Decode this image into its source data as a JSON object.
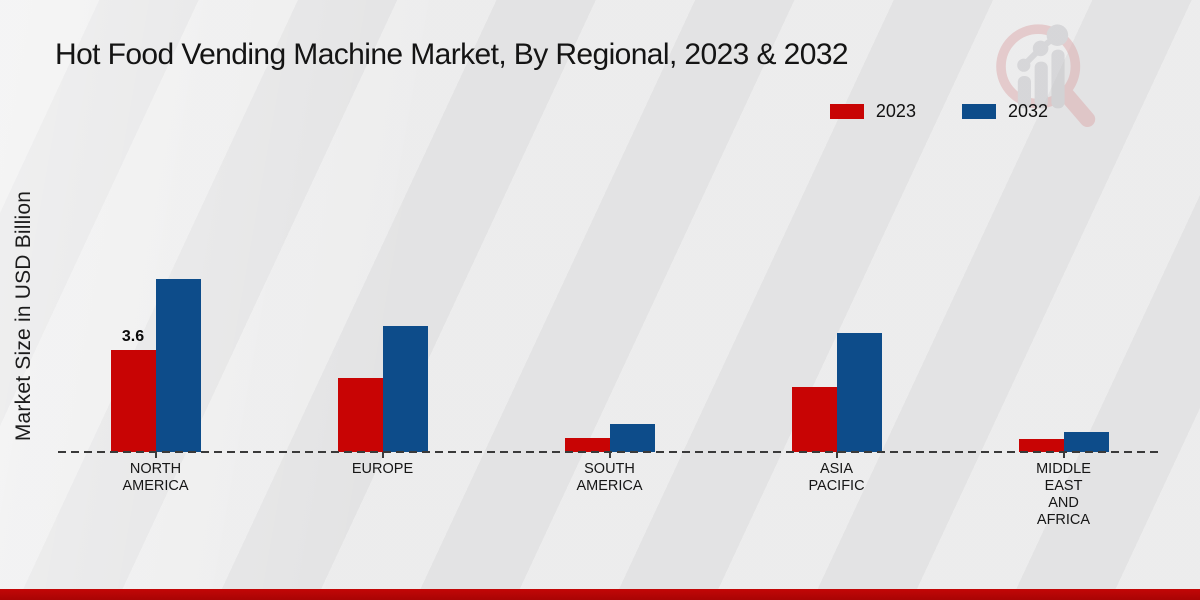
{
  "title": "Hot Food Vending Machine Market, By Regional, 2023 & 2032",
  "ylabel": "Market Size in USD Billion",
  "legend": [
    {
      "label": "2023",
      "color": "#c80404"
    },
    {
      "label": "2032",
      "color": "#0d4c8a"
    }
  ],
  "colors": {
    "series_2023": "#c80404",
    "series_2032": "#0d4c8a",
    "footer_band": "#b30505",
    "background": "#e8e8e9",
    "axis_line": "#3a3a3a"
  },
  "watermark": "market-research-future-logo",
  "chart_data": {
    "type": "bar",
    "categories": [
      "NORTH AMERICA",
      "EUROPE",
      "SOUTH AMERICA",
      "ASIA PACIFIC",
      "MIDDLE EAST AND AFRICA"
    ],
    "series": [
      {
        "name": "2023",
        "color": "#c80404",
        "values": [
          3.6,
          2.6,
          0.5,
          2.3,
          0.45
        ]
      },
      {
        "name": "2032",
        "color": "#0d4c8a",
        "values": [
          6.1,
          4.45,
          1.0,
          4.2,
          0.7
        ]
      }
    ],
    "annotations": [
      {
        "series": "2023",
        "category": "NORTH AMERICA",
        "text": "3.6"
      }
    ],
    "xlabel": "",
    "ylabel": "Market Size in USD Billion",
    "ylim": [
      0,
      7
    ],
    "grid": false,
    "axis_style": "dashed-baseline-only",
    "legend_position": "top-right"
  }
}
